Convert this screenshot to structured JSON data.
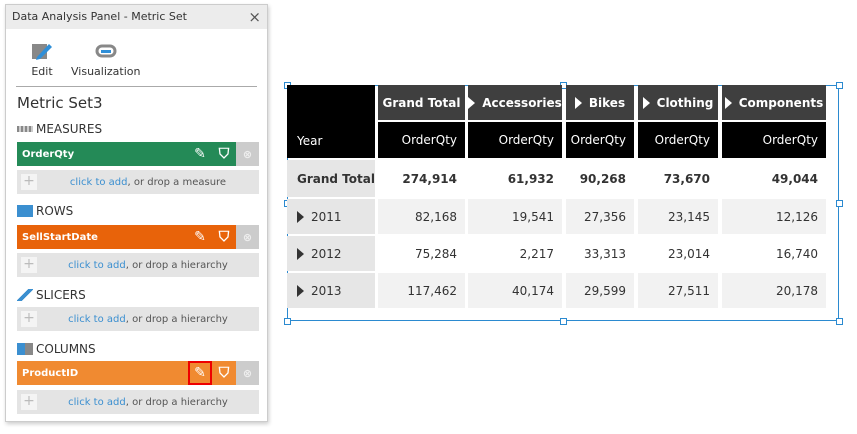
{
  "panel": {
    "title": "Data Analysis Panel - Metric Set",
    "close": "×",
    "edit": "Edit",
    "visualization": "Visualization",
    "metric_set": "Metric Set3",
    "sections": {
      "measures": "MEASURES",
      "rows": "ROWS",
      "slicers": "SLICERS",
      "columns": "COLUMNS"
    },
    "measure_chip": "OrderQty",
    "row_chip": "SellStartDate",
    "column_chip": "ProductID",
    "click_to_add": "click to add",
    "drop_measure": ", or drop a measure",
    "drop_hierarchy": ", or drop a hierarchy",
    "colors": {
      "measure": "#248a57",
      "row": "#e8630a",
      "column": "#f08a31"
    }
  },
  "table": {
    "corner": "Year",
    "columns": [
      "Grand Total",
      "Accessories",
      "Bikes",
      "Clothing",
      "Components"
    ],
    "measure": "OrderQty",
    "rows": [
      {
        "label": "Grand Total",
        "values": [
          "274,914",
          "61,932",
          "90,268",
          "73,670",
          "49,044"
        ]
      },
      {
        "label": "2011",
        "values": [
          "82,168",
          "19,541",
          "27,356",
          "23,145",
          "12,126"
        ]
      },
      {
        "label": "2012",
        "values": [
          "75,284",
          "2,217",
          "33,313",
          "23,014",
          "16,740"
        ]
      },
      {
        "label": "2013",
        "values": [
          "117,462",
          "40,174",
          "29,599",
          "27,511",
          "20,178"
        ]
      }
    ]
  }
}
